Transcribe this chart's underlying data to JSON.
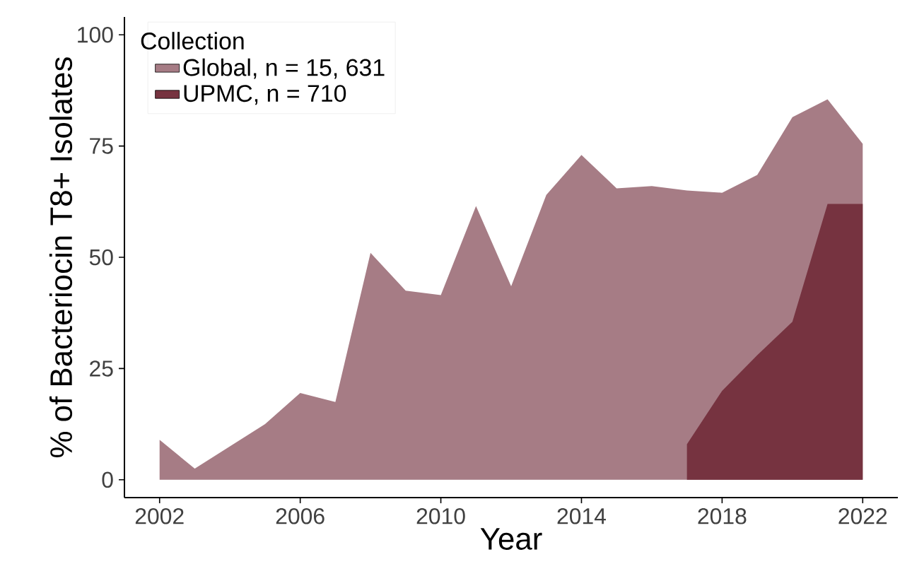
{
  "chart_data": {
    "type": "area",
    "xlabel": "Year",
    "ylabel": "% of Bacteriocin T8+ Isolates",
    "legend_title": "Collection",
    "legend": "top left",
    "grid": false,
    "x": [
      2002,
      2003,
      2004,
      2005,
      2006,
      2007,
      2008,
      2009,
      2010,
      2011,
      2012,
      2013,
      2014,
      2015,
      2016,
      2017,
      2018,
      2019,
      2020,
      2021,
      2022
    ],
    "series": [
      {
        "name": "Global, n = 15, 631",
        "color": "#a67c85",
        "values": [
          9,
          2.5,
          7.5,
          12.5,
          19.5,
          17.5,
          51,
          42.5,
          41.5,
          61.5,
          43.5,
          64,
          73,
          65.5,
          66,
          65,
          64.5,
          68.5,
          81.5,
          85.5,
          75.5
        ]
      },
      {
        "name": "UPMC, n = 710",
        "color": "#763340",
        "values": [
          null,
          null,
          null,
          null,
          null,
          null,
          null,
          null,
          null,
          null,
          null,
          null,
          null,
          null,
          null,
          8,
          20,
          28,
          35.5,
          62,
          62
        ]
      }
    ],
    "xlim": [
      2001,
      2023
    ],
    "ylim": [
      -4,
      104
    ],
    "xticks": [
      2002,
      2006,
      2010,
      2014,
      2018,
      2022
    ],
    "yticks": [
      0,
      25,
      50,
      75,
      100
    ]
  }
}
